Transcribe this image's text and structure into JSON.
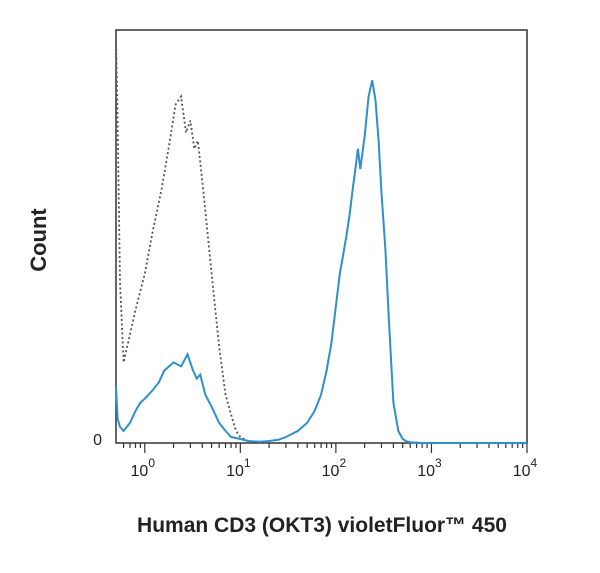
{
  "chart_data": {
    "type": "line",
    "title": "",
    "xlabel": "Human CD3 (OKT3) violetFluor™ 450",
    "ylabel": "Count",
    "x_scale": "log",
    "xlim": [
      0.5,
      10000
    ],
    "ylim": [
      0,
      100
    ],
    "x_ticks": [
      {
        "base": "10",
        "exp": "0",
        "value": 1
      },
      {
        "base": "10",
        "exp": "1",
        "value": 10
      },
      {
        "base": "10",
        "exp": "2",
        "value": 100
      },
      {
        "base": "10",
        "exp": "3",
        "value": 1000
      },
      {
        "base": "10",
        "exp": "4",
        "value": 10000
      }
    ],
    "y_tick_label": "0",
    "grid": false,
    "legend": "none",
    "series": [
      {
        "style": "dotted",
        "color": "#555555",
        "x": [
          0.5,
          0.52,
          0.55,
          0.6,
          0.7,
          0.8,
          1.0,
          1.2,
          1.5,
          1.8,
          2.1,
          2.4,
          2.7,
          3.0,
          3.3,
          3.6,
          4.0,
          4.5,
          5.0,
          6.0,
          7.0,
          8.0,
          9.0,
          10,
          11,
          12,
          14,
          16,
          20
        ],
        "y": [
          100,
          80,
          40,
          20,
          27,
          33,
          42,
          52,
          63,
          74,
          84,
          86,
          77,
          80,
          73,
          75,
          65,
          53,
          42,
          24,
          12,
          7,
          3,
          1.5,
          1.0,
          0.5,
          0.3,
          0.2,
          0
        ]
      },
      {
        "style": "solid",
        "color": "#2f8fce",
        "x": [
          0.5,
          0.52,
          0.55,
          0.6,
          0.7,
          0.8,
          0.9,
          1.0,
          1.2,
          1.4,
          1.6,
          2.0,
          2.4,
          2.8,
          3.2,
          3.5,
          3.8,
          4.3,
          5.0,
          6.0,
          7.0,
          8.0,
          10,
          12,
          16,
          20,
          25,
          30,
          40,
          50,
          60,
          70,
          80,
          90,
          100,
          110,
          120,
          130,
          140,
          150,
          160,
          170,
          180,
          200,
          220,
          240,
          260,
          280,
          300,
          330,
          360,
          400,
          450,
          500,
          550,
          600,
          800,
          1000,
          2000,
          5000,
          10000
        ],
        "y": [
          14,
          6,
          4,
          3,
          5,
          8,
          10,
          11,
          13,
          15,
          18,
          20,
          19,
          22,
          18,
          16,
          17,
          12,
          9,
          5,
          3,
          1.5,
          1,
          0.5,
          0.3,
          0.5,
          0.8,
          1.5,
          3,
          5,
          8,
          12,
          18,
          25,
          34,
          42,
          47,
          52,
          57,
          63,
          68,
          73,
          68,
          76,
          86,
          90,
          85,
          75,
          62,
          48,
          30,
          10,
          3,
          1,
          0.4,
          0.2,
          0,
          0,
          0,
          0,
          0
        ]
      }
    ]
  }
}
